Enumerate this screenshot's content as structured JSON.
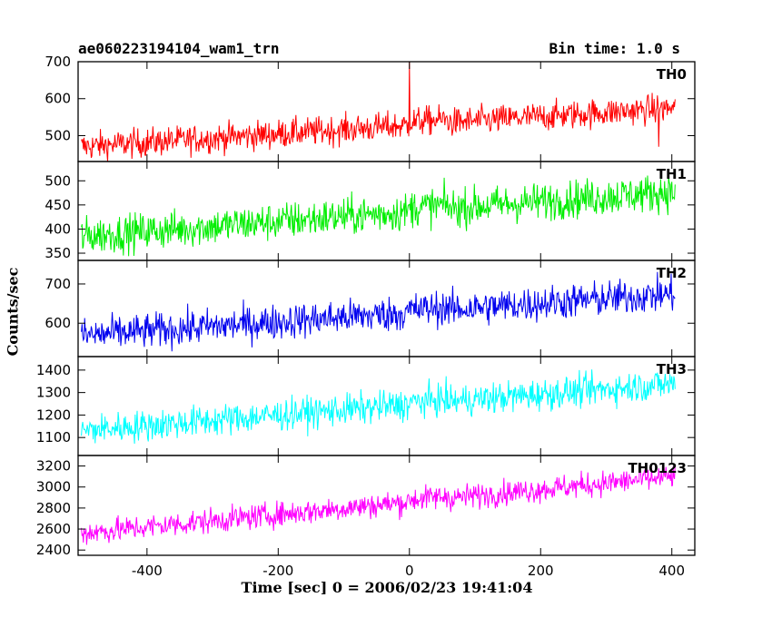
{
  "header": {
    "title": "ae060223194104_wam1_trn",
    "bin_time": "Bin time: 1.0 s"
  },
  "chart_data": {
    "type": "line",
    "title": "ae060223194104_wam1_trn",
    "xlabel": "Time [sec] 0 = 2006/02/23 19:41:04",
    "ylabel": "Counts/sec",
    "xlim": [
      -505,
      435
    ],
    "x_ticks": [
      -400,
      -200,
      0,
      200,
      400
    ],
    "x_range": [
      -500,
      405
    ],
    "grid": false,
    "panels": [
      {
        "name": "TH0",
        "color": "#ff0000",
        "ylim": [
          430,
          700
        ],
        "y_ticks": [
          500,
          600,
          700
        ],
        "trend_start": 470,
        "trend_end": 575,
        "noise": 28,
        "step_at_0": 18,
        "spike": 705,
        "min_dip": 470
      },
      {
        "name": "TH1",
        "color": "#00ee00",
        "ylim": [
          335,
          540
        ],
        "y_ticks": [
          350,
          400,
          450,
          500
        ],
        "trend_start": 385,
        "trend_end": 478,
        "noise": 28,
        "step_at_0": 15
      },
      {
        "name": "TH2",
        "color": "#0000ee",
        "ylim": [
          515,
          760
        ],
        "y_ticks": [
          600,
          700
        ],
        "trend_start": 568,
        "trend_end": 675,
        "noise": 32,
        "step_at_0": 12
      },
      {
        "name": "TH3",
        "color": "#00ffff",
        "ylim": [
          1020,
          1460
        ],
        "y_ticks": [
          1100,
          1200,
          1300,
          1400
        ],
        "trend_start": 1130,
        "trend_end": 1340,
        "noise": 50,
        "step_at_0": 20
      },
      {
        "name": "TH0123",
        "color": "#ff00ff",
        "ylim": [
          2350,
          3300
        ],
        "y_ticks": [
          2400,
          2600,
          2800,
          3000,
          3200
        ],
        "trend_start": 2560,
        "trend_end": 3100,
        "noise": 85,
        "step_at_0": 40
      }
    ]
  }
}
